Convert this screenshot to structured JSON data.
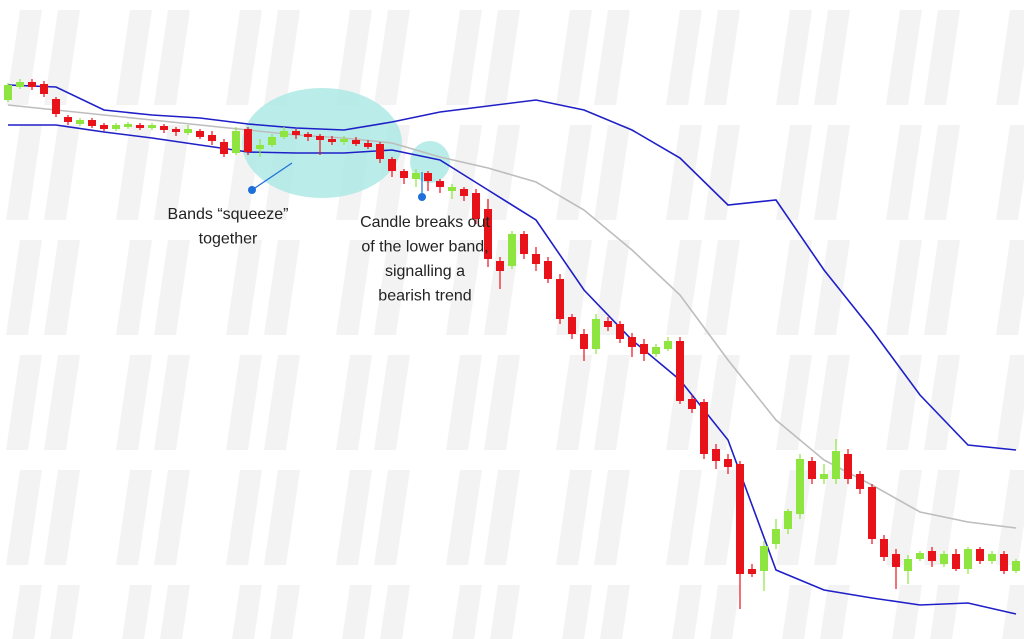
{
  "chart_data": {
    "type": "candlestick",
    "ylim": [
      0,
      639
    ],
    "up_color": "#8ee53f",
    "down_color": "#e8121a",
    "open": [
      539,
      552,
      557,
      555,
      540,
      522,
      515,
      519,
      514,
      510,
      512,
      514,
      511,
      513,
      510,
      506,
      508,
      504,
      497,
      486,
      510,
      490,
      494,
      502,
      508,
      505,
      503,
      500,
      497,
      499,
      496,
      495,
      480,
      468,
      460,
      466,
      458,
      448,
      450,
      446,
      430,
      378,
      373,
      405,
      385,
      378,
      360,
      322,
      305,
      290,
      318,
      315,
      302,
      295,
      285,
      290,
      298,
      240,
      237,
      190,
      180,
      175,
      70,
      68,
      95,
      110,
      125,
      178,
      160,
      160,
      185,
      165,
      152,
      100,
      85,
      68,
      80,
      88,
      75,
      85,
      70,
      90,
      78,
      85,
      68
    ],
    "high": [
      556,
      560,
      560,
      558,
      542,
      524,
      521,
      521,
      516,
      516,
      517,
      516,
      516,
      515,
      512,
      514,
      510,
      508,
      500,
      512,
      512,
      500,
      505,
      512,
      510,
      507,
      505,
      503,
      503,
      502,
      499,
      497,
      482,
      470,
      470,
      468,
      460,
      455,
      452,
      450,
      440,
      382,
      408,
      408,
      392,
      382,
      365,
      325,
      310,
      325,
      322,
      318,
      306,
      300,
      295,
      302,
      302,
      244,
      240,
      195,
      185,
      178,
      75,
      98,
      120,
      130,
      185,
      182,
      175,
      200,
      190,
      168,
      155,
      104,
      90,
      84,
      88,
      92,
      88,
      90,
      92,
      92,
      88,
      88,
      80
    ],
    "low": [
      537,
      550,
      549,
      542,
      522,
      514,
      513,
      511,
      508,
      508,
      510,
      509,
      509,
      506,
      503,
      504,
      500,
      494,
      482,
      484,
      484,
      482,
      492,
      500,
      500,
      498,
      484,
      494,
      494,
      493,
      490,
      476,
      462,
      455,
      452,
      448,
      446,
      440,
      438,
      415,
      372,
      350,
      370,
      380,
      368,
      356,
      315,
      300,
      278,
      285,
      308,
      296,
      282,
      278,
      282,
      288,
      235,
      226,
      180,
      170,
      165,
      30,
      62,
      48,
      90,
      105,
      120,
      155,
      155,
      155,
      155,
      145,
      95,
      78,
      50,
      55,
      78,
      72,
      72,
      68,
      65,
      75,
      75,
      65,
      66
    ],
    "close": [
      554,
      557,
      552,
      545,
      525,
      517,
      519,
      513,
      510,
      514,
      515,
      511,
      514,
      509,
      507,
      510,
      502,
      498,
      485,
      508,
      487,
      494,
      502,
      508,
      504,
      502,
      499,
      497,
      500,
      495,
      492,
      480,
      468,
      461,
      466,
      458,
      452,
      452,
      443,
      420,
      380,
      368,
      405,
      385,
      375,
      360,
      320,
      305,
      290,
      320,
      312,
      300,
      292,
      285,
      292,
      298,
      238,
      230,
      185,
      178,
      172,
      65,
      65,
      93,
      110,
      128,
      180,
      160,
      165,
      188,
      160,
      150,
      100,
      82,
      72,
      80,
      86,
      78,
      85,
      70,
      90,
      78,
      85,
      68,
      78
    ],
    "series": [
      {
        "color": "#1f1fc8",
        "x": [
          0,
          4,
          8,
          12,
          16,
          20,
          24,
          28,
          32,
          36,
          40,
          44,
          48,
          52,
          56,
          60,
          64,
          68,
          72,
          76,
          80,
          84
        ],
        "values": [
          554,
          552,
          529,
          524,
          521,
          515,
          511,
          509,
          517,
          527,
          533,
          539,
          529,
          509,
          481,
          434,
          439,
          369,
          309,
          244,
          194,
          189
        ]
      },
      {
        "color": "#bdbdbd",
        "x": [
          0,
          4,
          8,
          12,
          16,
          20,
          24,
          28,
          32,
          36,
          40,
          44,
          48,
          52,
          56,
          60,
          64,
          68,
          72,
          76,
          80,
          84
        ],
        "values": [
          534,
          529,
          524,
          519,
          514,
          509,
          504,
          501,
          496,
          482,
          471,
          457,
          429,
          389,
          344,
          279,
          219,
          179,
          154,
          127,
          117,
          111
        ]
      },
      {
        "color": "#1f1fc8",
        "x": [
          0,
          4,
          8,
          12,
          16,
          20,
          24,
          28,
          32,
          36,
          40,
          44,
          48,
          52,
          56,
          60,
          64,
          68,
          72,
          76,
          80,
          84
        ],
        "values": [
          514,
          514,
          507,
          501,
          494,
          487,
          486,
          486,
          489,
          479,
          449,
          419,
          349,
          299,
          259,
          199,
          69,
          49,
          41,
          34,
          36,
          25
        ]
      }
    ],
    "annotations": [
      {
        "lines": [
          "Bands “squeeze”",
          "together"
        ]
      },
      {
        "lines": [
          "Candle breaks out",
          "of the lower band,",
          "signalling a",
          "bearish trend"
        ]
      }
    ]
  }
}
